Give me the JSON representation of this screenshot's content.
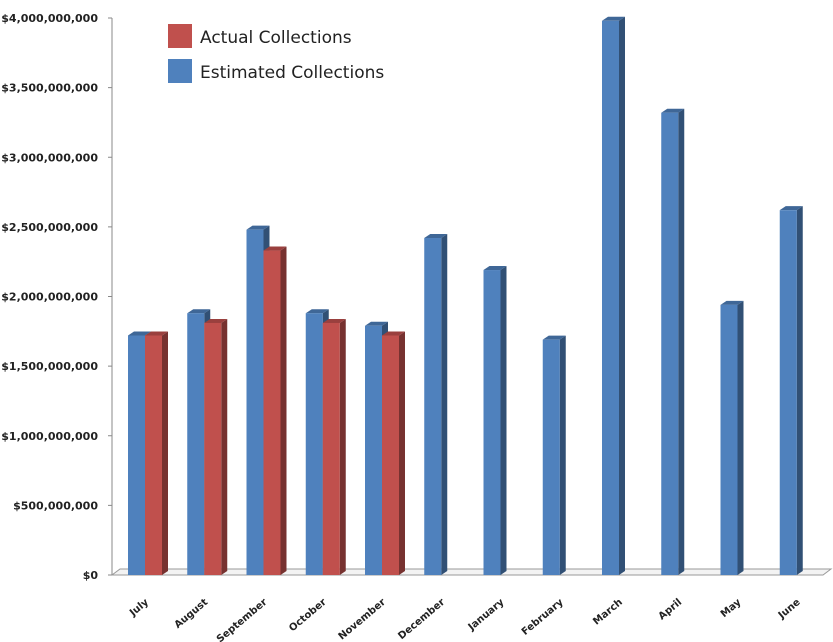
{
  "chart_data": {
    "type": "bar",
    "categories": [
      "July",
      "August",
      "September",
      "October",
      "November",
      "December",
      "January",
      "February",
      "March",
      "April",
      "May",
      "June"
    ],
    "series": [
      {
        "name": "Estimated Collections",
        "color": "#4f81bd",
        "values": [
          1720000000,
          1880000000,
          2480000000,
          1880000000,
          1790000000,
          2420000000,
          2190000000,
          1690000000,
          3980000000,
          3320000000,
          1940000000,
          2620000000
        ]
      },
      {
        "name": "Actual Collections",
        "color": "#c0504d",
        "values": [
          1720000000,
          1810000000,
          2330000000,
          1810000000,
          1720000000,
          null,
          null,
          null,
          null,
          null,
          null,
          null
        ]
      }
    ],
    "yticks": [
      "$0",
      "$500,000,000",
      "$1,000,000,000",
      "$1,500,000,000",
      "$2,000,000,000",
      "$2,500,000,000",
      "$3,000,000,000",
      "$3,500,000,000",
      "$4,000,000,000"
    ],
    "ylim": [
      0,
      4000000000
    ],
    "legend": {
      "position": "top-left",
      "items": [
        {
          "label": "Actual Collections",
          "color": "#c0504d"
        },
        {
          "label": "Estimated Collections",
          "color": "#4f81bd"
        }
      ]
    },
    "grid": false
  }
}
